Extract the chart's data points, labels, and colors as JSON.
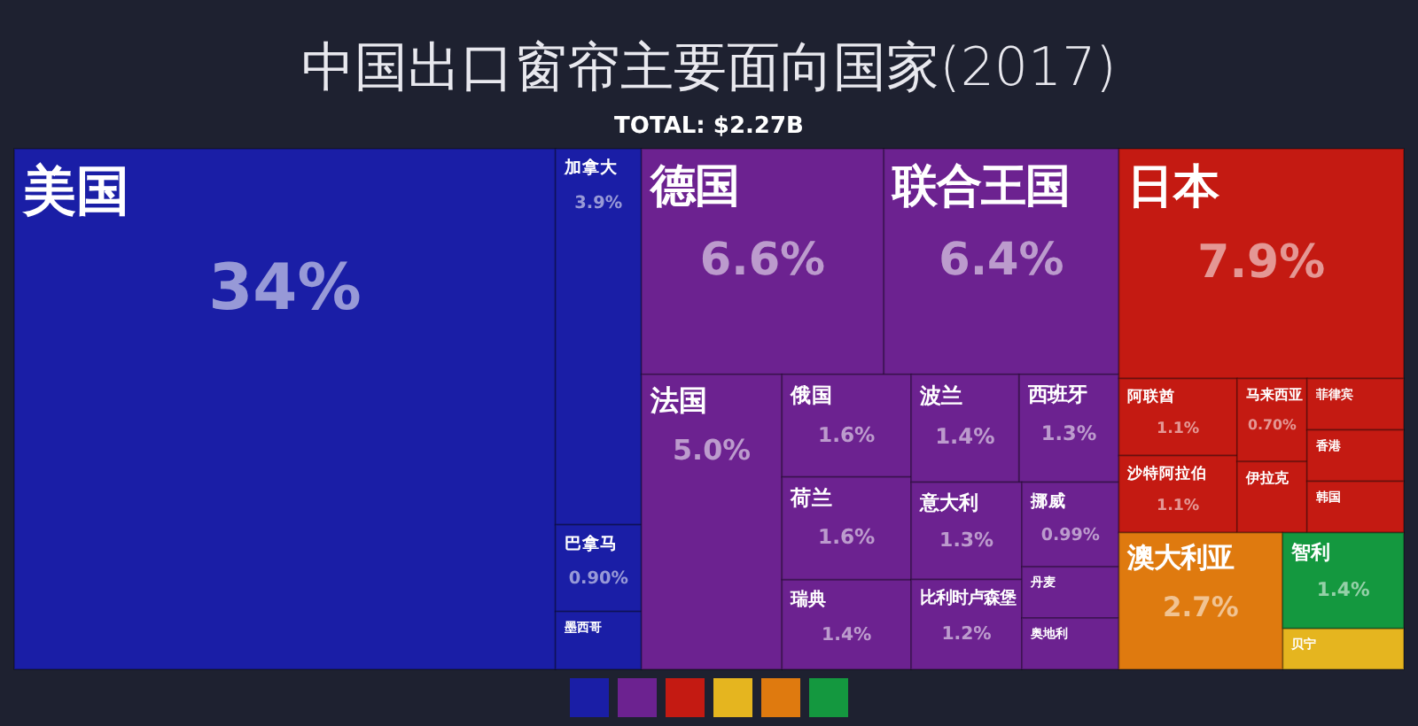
{
  "chart_data": {
    "type": "other",
    "title": "中国出口窗帘主要面向国家(2017)",
    "subtitle": "TOTAL: $2.27B",
    "categories": [
      "美国",
      "加拿大",
      "巴拿马",
      "墨西哥",
      "德国",
      "联合王国",
      "法国",
      "俄国",
      "瑞典",
      "荷兰",
      "西班牙",
      "波兰",
      "意大利",
      "比利时卢森堡",
      "挪威",
      "丹麦",
      "奥地利",
      "日本",
      "阿联酋",
      "沙特阿拉伯",
      "马来西亚",
      "伊拉克",
      "菲律宾",
      "香港",
      "韩国",
      "贝宁",
      "澳大利亚",
      "智利"
    ],
    "values": [
      34,
      3.9,
      0.9,
      null,
      6.6,
      6.4,
      5.0,
      1.6,
      1.4,
      1.6,
      1.3,
      1.4,
      1.3,
      1.2,
      0.99,
      null,
      null,
      7.9,
      1.1,
      1.1,
      0.7,
      null,
      null,
      null,
      null,
      null,
      2.7,
      1.4
    ],
    "value_labels": [
      "34%",
      "3.9%",
      "0.90%",
      null,
      "6.6%",
      "6.4%",
      "5.0%",
      "1.6%",
      "1.4%",
      "1.6%",
      "1.3%",
      "1.4%",
      "1.3%",
      "1.2%",
      "0.99%",
      null,
      null,
      "7.9%",
      "1.1%",
      "1.1%",
      "0.70%",
      null,
      null,
      null,
      null,
      null,
      "2.7%",
      "1.4%"
    ],
    "colors": [
      "#1a1ea6",
      "#1a1ea6",
      "#1a1ea6",
      "#1a1ea6",
      "#6c2290",
      "#6c2290",
      "#6c2290",
      "#6c2290",
      "#6c2290",
      "#6c2290",
      "#6c2290",
      "#6c2290",
      "#6c2290",
      "#6c2290",
      "#6c2290",
      "#6c2290",
      "#6c2290",
      "#c41a12",
      "#c41a12",
      "#c41a12",
      "#c41a12",
      "#c41a12",
      "#c41a12",
      "#c41a12",
      "#c41a12",
      "#e5b51f",
      "#df7a0f",
      "#14983f"
    ]
  }
}
